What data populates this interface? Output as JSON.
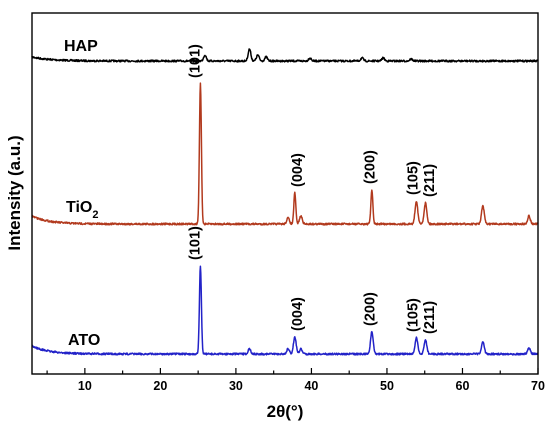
{
  "chart_data": {
    "type": "line",
    "xlabel": "2θ(°)",
    "ylabel": "Intensity (a.u.)",
    "xlim": [
      3,
      70
    ],
    "x_ticks": [
      10,
      20,
      30,
      40,
      50,
      60,
      70
    ],
    "y_ticks_shown": false,
    "grid": false,
    "legend": "none",
    "series": [
      {
        "name": "HAP",
        "label_parts": [
          "HAP"
        ],
        "color": "#000000",
        "baseline": 61,
        "peaks": [
          [
            25.9,
            6
          ],
          [
            31.8,
            12
          ],
          [
            32.9,
            6
          ],
          [
            34.0,
            4
          ],
          [
            39.8,
            3
          ],
          [
            46.7,
            3
          ],
          [
            49.5,
            3
          ],
          [
            53.2,
            2
          ]
        ]
      },
      {
        "name": "TiO2",
        "label_parts": [
          "TiO",
          "2"
        ],
        "color": "#b23a1e",
        "baseline": 224,
        "peaks": [
          [
            25.3,
            140
          ],
          [
            36.9,
            6
          ],
          [
            37.8,
            31
          ],
          [
            38.6,
            8
          ],
          [
            48.0,
            34
          ],
          [
            53.9,
            23
          ],
          [
            55.1,
            21
          ],
          [
            62.7,
            18
          ],
          [
            68.8,
            8
          ]
        ],
        "peak_labels": [
          {
            "text": "(101)",
            "x": 24.5
          },
          {
            "text": "(004)",
            "x": 38.1
          },
          {
            "text": "(200)",
            "x": 47.7
          },
          {
            "text": "(105)",
            "x": 53.4
          },
          {
            "text": "(211)",
            "x": 55.6
          }
        ]
      },
      {
        "name": "ATO",
        "label_parts": [
          "ATO"
        ],
        "color": "#2323c8",
        "baseline": 354,
        "peaks": [
          [
            25.3,
            88
          ],
          [
            31.8,
            5
          ],
          [
            36.9,
            5
          ],
          [
            37.8,
            17
          ],
          [
            38.6,
            5
          ],
          [
            48.0,
            22
          ],
          [
            53.9,
            16
          ],
          [
            55.1,
            14
          ],
          [
            62.7,
            12
          ],
          [
            68.8,
            6
          ]
        ],
        "peak_labels": [
          {
            "text": "(101)",
            "x": 24.5
          },
          {
            "text": "(004)",
            "x": 38.1
          },
          {
            "text": "(200)",
            "x": 47.7
          },
          {
            "text": "(105)",
            "x": 53.4
          },
          {
            "text": "(211)",
            "x": 55.6
          }
        ]
      }
    ]
  }
}
